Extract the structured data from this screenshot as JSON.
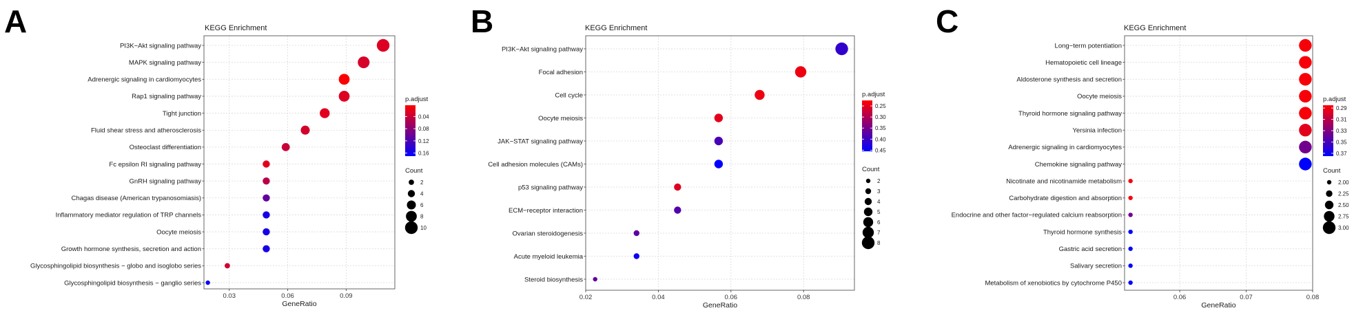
{
  "colors": {
    "low": "#ff0000",
    "high": "#0000ff",
    "frame": "#555555",
    "grid": "#d9d9d9"
  },
  "chart_data": [
    {
      "panel_label": "A",
      "type": "scatter",
      "title": "KEGG Enrichment",
      "xlabel": "GeneRatio",
      "ylabel": "",
      "xlim": [
        0.017,
        0.115
      ],
      "xticks": [
        0.03,
        0.06,
        0.09
      ],
      "xtick_labels": [
        "0.03",
        "0.06",
        "0.09"
      ],
      "grid": true,
      "color_legend": {
        "title": "p.adjust",
        "range": [
          0.003,
          0.17
        ],
        "ticks": [
          0.04,
          0.08,
          0.12,
          0.16
        ],
        "tick_labels": [
          "0.04",
          "0.08",
          "0.12",
          "0.16"
        ],
        "reversed": true
      },
      "size_legend": {
        "title": "Count",
        "values": [
          2,
          4,
          6,
          8,
          10
        ],
        "labels": [
          "2",
          "4",
          "6",
          "8",
          "10"
        ],
        "range": [
          1,
          10
        ]
      },
      "points": [
        {
          "term": "PI3K−Akt signaling pathway",
          "x": 0.109,
          "count": 10,
          "p_adjust": 0.025
        },
        {
          "term": "MAPK signaling pathway",
          "x": 0.099,
          "count": 9,
          "p_adjust": 0.03
        },
        {
          "term": "Adrenergic signaling in cardiomyocytes",
          "x": 0.089,
          "count": 8,
          "p_adjust": 0.006
        },
        {
          "term": "Rap1 signaling pathway",
          "x": 0.089,
          "count": 8,
          "p_adjust": 0.025
        },
        {
          "term": "Tight junction",
          "x": 0.079,
          "count": 7,
          "p_adjust": 0.022
        },
        {
          "term": "Fluid shear stress and atherosclerosis",
          "x": 0.069,
          "count": 6,
          "p_adjust": 0.032
        },
        {
          "term": "Osteoclast differentiation",
          "x": 0.059,
          "count": 5,
          "p_adjust": 0.04
        },
        {
          "term": "Fc epsilon RI signaling pathway",
          "x": 0.049,
          "count": 4,
          "p_adjust": 0.022
        },
        {
          "term": "GnRH signaling pathway",
          "x": 0.049,
          "count": 4,
          "p_adjust": 0.05
        },
        {
          "term": "Chagas disease (American trypanosomiasis)",
          "x": 0.049,
          "count": 4,
          "p_adjust": 0.105
        },
        {
          "term": "Inflammatory mediator regulation of TRP channels",
          "x": 0.049,
          "count": 4,
          "p_adjust": 0.155
        },
        {
          "term": "Oocyte meiosis",
          "x": 0.049,
          "count": 4,
          "p_adjust": 0.155
        },
        {
          "term": "Growth hormone synthesis, secretion and action",
          "x": 0.049,
          "count": 4,
          "p_adjust": 0.155
        },
        {
          "term": "Glycosphingolipid biosynthesis − globo and isoglobo series",
          "x": 0.029,
          "count": 2,
          "p_adjust": 0.035
        },
        {
          "term": "Glycosphingolipid biosynthesis − ganglio series",
          "x": 0.019,
          "count": 1,
          "p_adjust": 0.165
        }
      ]
    },
    {
      "panel_label": "B",
      "type": "scatter",
      "title": "KEGG Enrichment",
      "xlabel": "GeneRatio",
      "ylabel": "",
      "xlim": [
        0.02,
        0.094
      ],
      "xticks": [
        0.02,
        0.04,
        0.06,
        0.08
      ],
      "xtick_labels": [
        "0.02",
        "0.04",
        "0.06",
        "0.08"
      ],
      "grid": true,
      "color_legend": {
        "title": "p.adjust",
        "range": [
          0.225,
          0.455
        ],
        "ticks": [
          0.25,
          0.3,
          0.35,
          0.4,
          0.45
        ],
        "tick_labels": [
          "0.25",
          "0.30",
          "0.35",
          "0.40",
          "0.45"
        ],
        "reversed": true
      },
      "size_legend": {
        "title": "Count",
        "values": [
          2,
          3,
          4,
          5,
          6,
          7,
          8
        ],
        "labels": [
          "2",
          "3",
          "4",
          "5",
          "6",
          "7",
          "8"
        ],
        "range": [
          2,
          8
        ]
      },
      "points": [
        {
          "term": "PI3K−Akt signaling pathway",
          "x": 0.0905,
          "count": 8,
          "p_adjust": 0.41
        },
        {
          "term": "Focal adhesion",
          "x": 0.0792,
          "count": 7,
          "p_adjust": 0.24
        },
        {
          "term": "Cell cycle",
          "x": 0.0679,
          "count": 6,
          "p_adjust": 0.24
        },
        {
          "term": "Oocyte meiosis",
          "x": 0.0566,
          "count": 5,
          "p_adjust": 0.25
        },
        {
          "term": "JAK−STAT signaling pathway",
          "x": 0.0566,
          "count": 5,
          "p_adjust": 0.39
        },
        {
          "term": "Cell adhesion molecules (CAMs)",
          "x": 0.0566,
          "count": 5,
          "p_adjust": 0.455
        },
        {
          "term": "p53 signaling pathway",
          "x": 0.0453,
          "count": 4,
          "p_adjust": 0.255
        },
        {
          "term": "ECM−receptor interaction",
          "x": 0.0453,
          "count": 4,
          "p_adjust": 0.38
        },
        {
          "term": "Ovarian steroidogenesis",
          "x": 0.034,
          "count": 3,
          "p_adjust": 0.37
        },
        {
          "term": "Acute myeloid leukemia",
          "x": 0.034,
          "count": 3,
          "p_adjust": 0.445
        },
        {
          "term": "Steroid biosynthesis",
          "x": 0.0226,
          "count": 2,
          "p_adjust": 0.37
        }
      ]
    },
    {
      "panel_label": "C",
      "type": "scatter",
      "title": "KEGG Enrichment",
      "xlabel": "GeneRatio",
      "ylabel": "",
      "xlim": [
        0.0517,
        0.08
      ],
      "xticks": [
        0.06,
        0.07,
        0.08
      ],
      "xtick_labels": [
        "0.06",
        "0.07",
        "0.08"
      ],
      "grid": true,
      "color_legend": {
        "title": "p.adjust",
        "range": [
          0.285,
          0.375
        ],
        "ticks": [
          0.29,
          0.31,
          0.33,
          0.35,
          0.37
        ],
        "tick_labels": [
          "0.29",
          "0.31",
          "0.33",
          "0.35",
          "0.37"
        ],
        "reversed": true
      },
      "size_legend": {
        "title": "Count",
        "values": [
          2,
          2.25,
          2.5,
          2.75,
          3
        ],
        "labels": [
          "2.00",
          "2.25",
          "2.50",
          "2.75",
          "3.00"
        ],
        "range": [
          2,
          3
        ]
      },
      "points": [
        {
          "term": "Long−term potentiation",
          "x": 0.0789,
          "count": 3,
          "p_adjust": 0.288
        },
        {
          "term": "Hematopoietic cell lineage",
          "x": 0.0789,
          "count": 3,
          "p_adjust": 0.288
        },
        {
          "term": "Aldosterone synthesis and secretion",
          "x": 0.0789,
          "count": 3,
          "p_adjust": 0.288
        },
        {
          "term": "Oocyte meiosis",
          "x": 0.0789,
          "count": 3,
          "p_adjust": 0.288
        },
        {
          "term": "Thyroid hormone signaling pathway",
          "x": 0.0789,
          "count": 3,
          "p_adjust": 0.288
        },
        {
          "term": "Yersinia infection",
          "x": 0.0789,
          "count": 3,
          "p_adjust": 0.295
        },
        {
          "term": "Adrenergic signaling in cardiomyocytes",
          "x": 0.0789,
          "count": 3,
          "p_adjust": 0.335
        },
        {
          "term": "Chemokine signaling pathway",
          "x": 0.0789,
          "count": 3,
          "p_adjust": 0.375
        },
        {
          "term": "Nicotinate and nicotinamide metabolism",
          "x": 0.0526,
          "count": 2,
          "p_adjust": 0.288
        },
        {
          "term": "Carbohydrate digestion and absorption",
          "x": 0.0526,
          "count": 2,
          "p_adjust": 0.288
        },
        {
          "term": "Endocrine and other factor−regulated calcium reabsorption",
          "x": 0.0526,
          "count": 2,
          "p_adjust": 0.335
        },
        {
          "term": "Thyroid hormone synthesis",
          "x": 0.0526,
          "count": 2,
          "p_adjust": 0.375
        },
        {
          "term": "Gastric acid secretion",
          "x": 0.0526,
          "count": 2,
          "p_adjust": 0.375
        },
        {
          "term": "Salivary secretion",
          "x": 0.0526,
          "count": 2,
          "p_adjust": 0.375
        },
        {
          "term": "Metabolism of xenobiotics by cytochrome P450",
          "x": 0.0526,
          "count": 2,
          "p_adjust": 0.375
        }
      ]
    }
  ]
}
